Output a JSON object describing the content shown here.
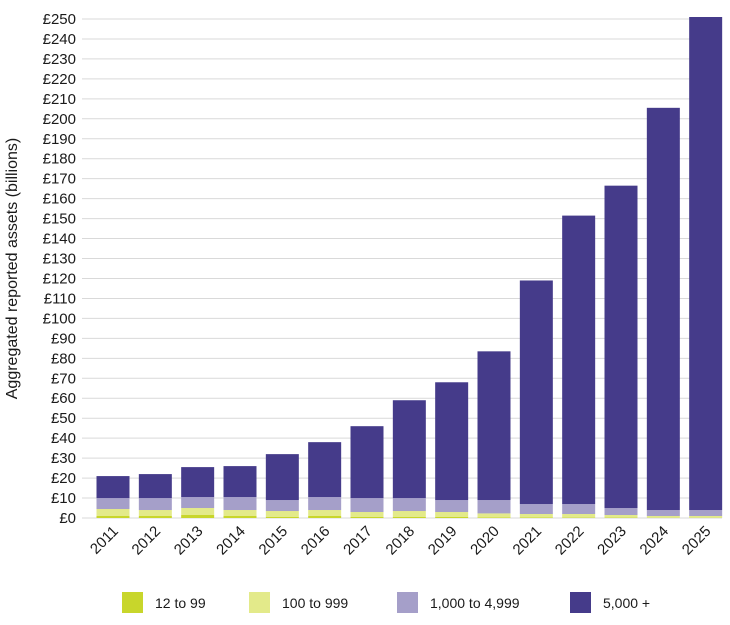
{
  "chart_data": {
    "type": "bar",
    "stacked": true,
    "title": "",
    "xlabel": "",
    "ylabel": "Aggregated reported assets (billions)",
    "ylim": [
      0,
      250
    ],
    "ytick_step": 10,
    "ytick_prefix": "£",
    "grid": "horizontal",
    "legend_position": "bottom",
    "categories": [
      "2011",
      "2012",
      "2013",
      "2014",
      "2015",
      "2016",
      "2017",
      "2018",
      "2019",
      "2020",
      "2021",
      "2022",
      "2023",
      "2024",
      "2025"
    ],
    "series": [
      {
        "name": "12 to 99",
        "color": "#c8d62b",
        "values": [
          1,
          1,
          1.5,
          1,
          0.5,
          1,
          0.5,
          0.5,
          0.5,
          0.3,
          0.3,
          0.2,
          0.2,
          0.1,
          0.1
        ]
      },
      {
        "name": "100 to 999",
        "color": "#e3ea8a",
        "values": [
          3.5,
          3,
          3.5,
          3,
          3,
          3,
          2.5,
          3,
          2.5,
          2,
          1.7,
          1.8,
          1.3,
          0.9,
          0.9
        ]
      },
      {
        "name": "1,000 to 4,999",
        "color": "#a59fc9",
        "values": [
          5.5,
          6,
          5.5,
          6.5,
          5.5,
          6.5,
          7,
          6.5,
          6,
          6.7,
          5,
          5,
          3.5,
          3,
          3
        ]
      },
      {
        "name": "5,000 +",
        "color": "#453b8a",
        "values": [
          11,
          12,
          15,
          15.5,
          23,
          27.5,
          36,
          49,
          59,
          74.5,
          112,
          144.5,
          161.5,
          201.5,
          247
        ]
      }
    ]
  }
}
